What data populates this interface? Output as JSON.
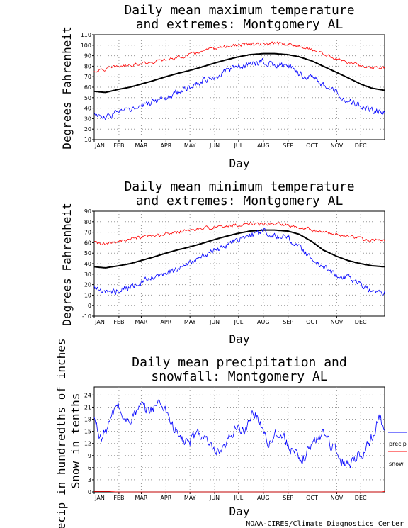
{
  "chart_data": [
    {
      "type": "line",
      "title_lines": [
        "Daily mean maximum temperature",
        "and extremes: Montgomery AL"
      ],
      "ylabel": "Degrees Fahrenheit",
      "xlabel": "Day",
      "ylim": [
        10,
        110
      ],
      "yticks": [
        10,
        20,
        30,
        40,
        50,
        60,
        70,
        80,
        90,
        100,
        110
      ],
      "months": [
        "JAN",
        "FEB",
        "MAR",
        "APR",
        "MAY",
        "JUN",
        "JUL",
        "AUG",
        "SEP",
        "OCT",
        "NOV",
        "DEC"
      ],
      "grid": true,
      "x_days": [
        1,
        15,
        32,
        46,
        60,
        74,
        91,
        105,
        121,
        135,
        152,
        166,
        182,
        196,
        213,
        227,
        244,
        258,
        274,
        288,
        305,
        319,
        335,
        349,
        365
      ],
      "series": [
        {
          "key": "mean",
          "color": "#000000",
          "width": 2,
          "values": [
            56,
            55,
            58,
            60,
            63,
            66,
            70,
            73,
            76,
            79,
            83,
            86,
            89,
            91,
            92,
            92,
            91,
            89,
            85,
            80,
            74,
            69,
            63,
            59,
            57
          ]
        },
        {
          "key": "record_high",
          "color": "#ff0000",
          "width": 0.8,
          "values": [
            75,
            77,
            80,
            81,
            83,
            84,
            86,
            88,
            91,
            94,
            97,
            99,
            100,
            101,
            101,
            102,
            101,
            99,
            96,
            92,
            87,
            84,
            80,
            79,
            79
          ]
        },
        {
          "key": "record_low",
          "color": "#0000ff",
          "width": 0.8,
          "values": [
            35,
            30,
            38,
            37,
            42,
            46,
            50,
            55,
            60,
            66,
            70,
            75,
            80,
            82,
            84,
            82,
            80,
            72,
            70,
            62,
            55,
            48,
            42,
            38,
            36
          ]
        }
      ]
    },
    {
      "type": "line",
      "title_lines": [
        "Daily mean minimum temperature",
        "and extremes: Montgomery AL"
      ],
      "ylabel": "Degrees Fahrenheit",
      "xlabel": "Day",
      "ylim": [
        -10,
        90
      ],
      "yticks": [
        -10,
        0,
        10,
        20,
        30,
        40,
        50,
        60,
        70,
        80,
        90
      ],
      "months": [
        "JAN",
        "FEB",
        "MAR",
        "APR",
        "MAY",
        "JUN",
        "JUL",
        "AUG",
        "SEP",
        "OCT",
        "NOV",
        "DEC"
      ],
      "grid": true,
      "x_days": [
        1,
        15,
        32,
        46,
        60,
        74,
        91,
        105,
        121,
        135,
        152,
        166,
        182,
        196,
        213,
        227,
        244,
        258,
        274,
        288,
        305,
        319,
        335,
        349,
        365
      ],
      "series": [
        {
          "key": "mean",
          "color": "#000000",
          "width": 2,
          "values": [
            37,
            36,
            38,
            40,
            43,
            46,
            50,
            53,
            56,
            59,
            63,
            66,
            69,
            71,
            72,
            72,
            71,
            68,
            61,
            53,
            47,
            43,
            40,
            38,
            37
          ]
        },
        {
          "key": "record_high",
          "color": "#ff0000",
          "width": 0.8,
          "values": [
            60,
            58,
            62,
            63,
            65,
            66,
            68,
            70,
            72,
            73,
            75,
            76,
            77,
            78,
            78,
            78,
            77,
            75,
            73,
            70,
            68,
            66,
            64,
            62,
            62
          ]
        },
        {
          "key": "record_low",
          "color": "#0000ff",
          "width": 0.8,
          "values": [
            18,
            12,
            15,
            18,
            22,
            26,
            30,
            35,
            40,
            46,
            52,
            57,
            63,
            67,
            70,
            68,
            64,
            56,
            44,
            36,
            30,
            26,
            20,
            14,
            12
          ]
        }
      ]
    },
    {
      "type": "line",
      "title_lines": [
        "Daily mean precipitation and",
        "snowfall: Montgomery AL"
      ],
      "ylabel_lines": [
        "Precip in hundredths of inches",
        "Snow in tenths"
      ],
      "xlabel": "Day",
      "ylim": [
        0,
        26
      ],
      "yticks": [
        0,
        3,
        6,
        9,
        12,
        15,
        18,
        21,
        24
      ],
      "months": [
        "JAN",
        "FEB",
        "MAR",
        "APR",
        "MAY",
        "JUN",
        "JUL",
        "AUG",
        "SEP",
        "OCT",
        "NOV",
        "DEC"
      ],
      "grid": true,
      "x_days": [
        1,
        10,
        20,
        30,
        40,
        50,
        60,
        70,
        80,
        90,
        100,
        110,
        120,
        130,
        140,
        150,
        160,
        170,
        180,
        190,
        200,
        210,
        220,
        230,
        240,
        250,
        260,
        270,
        280,
        290,
        300,
        310,
        320,
        330,
        340,
        350,
        360,
        365
      ],
      "series": [
        {
          "key": "precip",
          "name": "precip",
          "color": "#0000ff",
          "width": 0.8,
          "values": [
            18,
            13,
            17,
            22,
            17,
            19,
            21,
            20,
            22,
            21,
            16,
            13,
            12,
            15,
            13,
            10,
            9,
            13,
            17,
            14,
            20,
            17,
            12,
            15,
            13,
            10,
            7,
            11,
            13,
            15,
            11,
            8,
            7,
            9,
            10,
            14,
            19,
            14
          ]
        },
        {
          "key": "snow",
          "name": "snow",
          "color": "#ff0000",
          "width": 0.8,
          "values": [
            0.1,
            0.1,
            0.1,
            0,
            0,
            0,
            0,
            0,
            0,
            0,
            0,
            0,
            0,
            0,
            0,
            0,
            0,
            0,
            0,
            0,
            0,
            0,
            0,
            0,
            0,
            0,
            0,
            0,
            0,
            0,
            0,
            0,
            0,
            0,
            0,
            0,
            0,
            0.1
          ]
        }
      ]
    }
  ],
  "credit": "NOAA-CIRES/Climate Diagnostics Center"
}
